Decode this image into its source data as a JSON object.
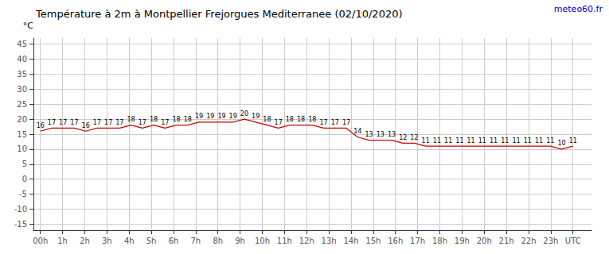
{
  "chart_data": {
    "type": "line",
    "title": "Température à 2m à Montpellier Frejorgues Mediterranee (02/10/2020)",
    "ylabel": "°C",
    "annotations": [
      {
        "text": "meteo60.fr",
        "color": "#0000cc"
      }
    ],
    "x": [
      0,
      0.4894,
      0.9787,
      1.4681,
      1.9574,
      2.4468,
      2.9362,
      3.4255,
      3.9149,
      4.4043,
      4.8936,
      5.383,
      5.8723,
      6.3617,
      6.8511,
      7.3404,
      7.8298,
      8.3191,
      8.8085,
      9.2979,
      9.7872,
      10.2766,
      10.766,
      11.2553,
      11.7447,
      12.234,
      12.7234,
      13.2128,
      13.7021,
      14.1915,
      14.6809,
      15.1702,
      15.6596,
      16.1489,
      16.6383,
      17.1277,
      17.617,
      18.1064,
      18.5957,
      19.0851,
      19.5745,
      20.0638,
      20.5532,
      21.0426,
      21.5319,
      22.0213,
      22.5106,
      23
    ],
    "values": [
      16,
      17,
      17,
      17,
      16,
      17,
      17,
      17,
      18,
      17,
      18,
      17,
      18,
      18,
      19,
      19,
      19,
      19,
      20,
      19,
      18,
      17,
      18,
      18,
      18,
      17,
      17,
      17,
      14,
      13,
      13,
      13,
      12,
      12,
      11,
      11,
      11,
      11,
      11,
      11,
      11,
      11,
      11,
      11,
      11,
      11,
      10,
      11
    ],
    "color": "#cc0000",
    "xlim": [
      -0.3,
      23.8
    ],
    "xticks": [
      {
        "value": 0,
        "label": "00h"
      },
      {
        "value": 0.9583,
        "label": "1h"
      },
      {
        "value": 1.9167,
        "label": "2h"
      },
      {
        "value": 2.875,
        "label": "3h"
      },
      {
        "value": 3.8333,
        "label": "4h"
      },
      {
        "value": 4.7917,
        "label": "5h"
      },
      {
        "value": 5.75,
        "label": "6h"
      },
      {
        "value": 6.7083,
        "label": "7h"
      },
      {
        "value": 7.6667,
        "label": "8h"
      },
      {
        "value": 8.625,
        "label": "9h"
      },
      {
        "value": 9.5833,
        "label": "10h"
      },
      {
        "value": 10.5417,
        "label": "11h"
      },
      {
        "value": 11.5,
        "label": "12h"
      },
      {
        "value": 12.4583,
        "label": "13h"
      },
      {
        "value": 13.4167,
        "label": "14h"
      },
      {
        "value": 14.375,
        "label": "15h"
      },
      {
        "value": 15.3333,
        "label": "16h"
      },
      {
        "value": 16.2917,
        "label": "17h"
      },
      {
        "value": 17.25,
        "label": "18h"
      },
      {
        "value": 18.2083,
        "label": "19h"
      },
      {
        "value": 19.1667,
        "label": "20h"
      },
      {
        "value": 20.125,
        "label": "21h"
      },
      {
        "value": 21.0833,
        "label": "22h"
      },
      {
        "value": 22.0417,
        "label": "23h"
      },
      {
        "value": 23,
        "label": "UTC"
      }
    ],
    "ylim": [
      -17,
      47
    ],
    "yticks": [
      -15,
      -10,
      -5,
      0,
      5,
      10,
      15,
      20,
      25,
      30,
      35,
      40,
      45
    ],
    "grid": true,
    "data_labels": true
  }
}
